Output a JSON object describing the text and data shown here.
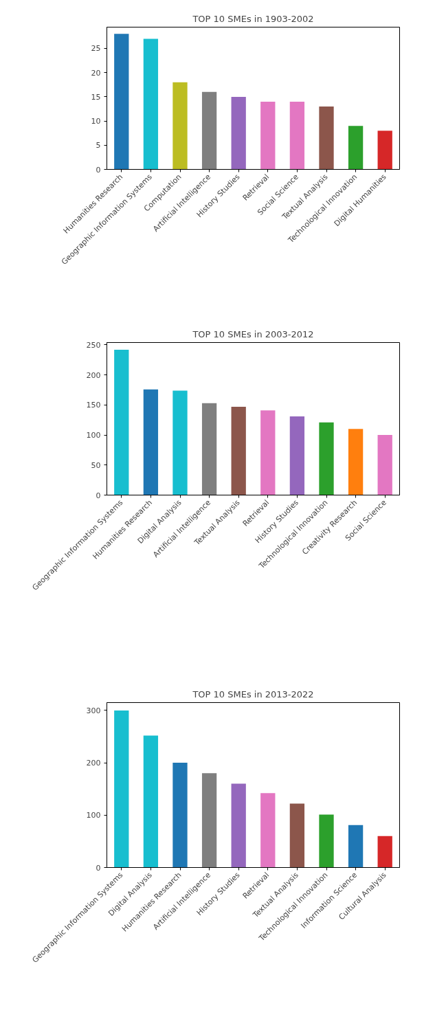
{
  "chart_data": [
    {
      "type": "bar",
      "title": "TOP 10 SMEs in 1903-2002",
      "categories": [
        "Humanities Research",
        "Geographic Information Systems",
        "Computation",
        "Artificial Intelligence",
        "History Studies",
        "Retrieval",
        "Social Science",
        "Textual Analysis",
        "Technological Innovation",
        "Digital Humanities"
      ],
      "values": [
        28,
        27,
        18,
        16,
        15,
        14,
        14,
        13,
        9,
        8
      ],
      "colors": [
        "#1f77b4",
        "#17becf",
        "#bcbd22",
        "#7f7f7f",
        "#9467bd",
        "#e377c2",
        "#e377c2",
        "#8c564b",
        "#2ca02c",
        "#d62728"
      ],
      "ylim": [
        0,
        29.4
      ],
      "yticks": [
        0,
        5,
        10,
        15,
        20,
        25
      ],
      "grid": false
    },
    {
      "type": "bar",
      "title": "TOP 10 SMEs in 2003-2012",
      "categories": [
        "Geographic Information Systems",
        "Humanities Research",
        "Digital Analysis",
        "Artificial Intelligence",
        "Textual Analysis",
        "Retrieval",
        "History Studies",
        "Technological Innovation",
        "Creativity Research",
        "Social Science"
      ],
      "values": [
        242,
        176,
        174,
        153,
        147,
        141,
        131,
        121,
        110,
        100
      ],
      "colors": [
        "#17becf",
        "#1f77b4",
        "#17becf",
        "#7f7f7f",
        "#8c564b",
        "#e377c2",
        "#9467bd",
        "#2ca02c",
        "#ff7f0e",
        "#e377c2"
      ],
      "ylim": [
        0,
        254
      ],
      "yticks": [
        0,
        50,
        100,
        150,
        200,
        250
      ],
      "grid": false
    },
    {
      "type": "bar",
      "title": "TOP 10 SMEs in 2013-2022",
      "categories": [
        "Geographic Information Systems",
        "Digital Analysis",
        "Humanities Research",
        "Artificial Intelligence",
        "History Studies",
        "Retrieval",
        "Textual Analysis",
        "Technological Innovation",
        "Information Science",
        "Cultural Analysis"
      ],
      "values": [
        300,
        252,
        200,
        180,
        160,
        142,
        122,
        101,
        81,
        60
      ],
      "colors": [
        "#17becf",
        "#17becf",
        "#1f77b4",
        "#7f7f7f",
        "#9467bd",
        "#e377c2",
        "#8c564b",
        "#2ca02c",
        "#1f77b4",
        "#d62728"
      ],
      "ylim": [
        0,
        315
      ],
      "yticks": [
        0,
        100,
        200,
        300
      ],
      "grid": false
    }
  ]
}
